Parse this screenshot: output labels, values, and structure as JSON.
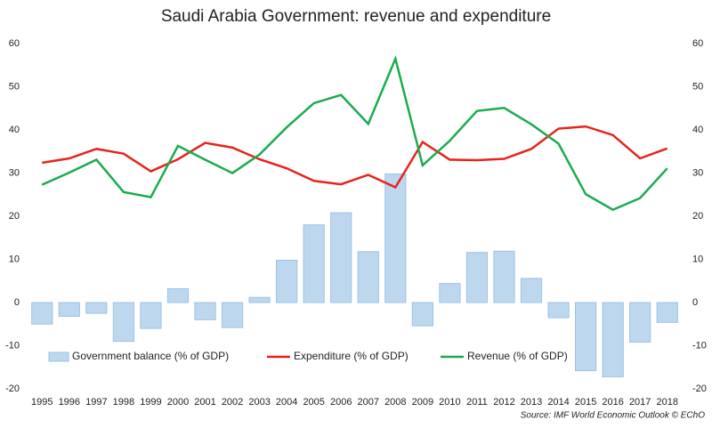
{
  "chart_data": {
    "type": "bar-line",
    "title": "Saudi Arabia Government: revenue and expenditure",
    "source": "Source: IMF World Economic Outlook © EChO",
    "categories": [
      "1995",
      "1996",
      "1997",
      "1998",
      "1999",
      "2000",
      "2001",
      "2002",
      "2003",
      "2004",
      "2005",
      "2006",
      "2007",
      "2008",
      "2009",
      "2010",
      "2011",
      "2012",
      "2013",
      "2014",
      "2015",
      "2016",
      "2017",
      "2018"
    ],
    "series": [
      {
        "name": "Government balance (% of GDP)",
        "kind": "bar",
        "color": "#bdd7ee",
        "values": [
          -5,
          -3.2,
          -2.5,
          -9,
          -6,
          3.2,
          -4,
          -5.8,
          1.2,
          9.8,
          18,
          20.8,
          11.8,
          29.8,
          -5.4,
          4.4,
          11.6,
          11.9,
          5.6,
          -3.5,
          -15.8,
          -17.2,
          -9.2,
          -4.6
        ]
      },
      {
        "name": "Expenditure (% of GDP)",
        "kind": "line",
        "color": "#e8231c",
        "values": [
          32.4,
          33.4,
          35.6,
          34.5,
          30.4,
          33.2,
          37,
          35.9,
          33.2,
          31.1,
          28.2,
          27.4,
          29.6,
          26.7,
          37.2,
          33.1,
          33,
          33.3,
          35.6,
          40.3,
          40.8,
          38.8,
          33.4,
          35.7
        ]
      },
      {
        "name": "Revenue (% of GDP)",
        "kind": "line",
        "color": "#1aac4e",
        "values": [
          27.3,
          30.1,
          33.1,
          25.6,
          24.4,
          36.3,
          33.1,
          30.0,
          34.3,
          40.6,
          46.2,
          48.1,
          41.4,
          56.5,
          31.8,
          37.5,
          44.4,
          45.1,
          41.3,
          36.8,
          25.1,
          21.5,
          24.2,
          31.1
        ]
      }
    ],
    "ylim": [
      -20,
      60
    ],
    "yticks": [
      -20,
      -10,
      0,
      10,
      20,
      30,
      40,
      50,
      60
    ],
    "y2lim": [
      -20,
      60
    ],
    "y2ticks": [
      -20,
      -10,
      0,
      10,
      20,
      30,
      40,
      50,
      60
    ],
    "grid": false
  }
}
